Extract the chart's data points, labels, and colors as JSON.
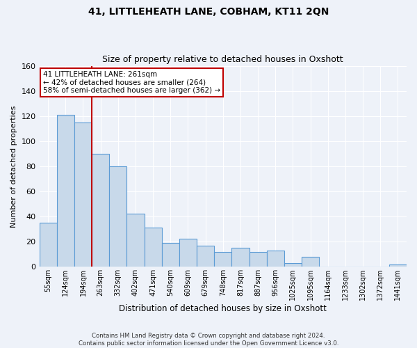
{
  "title": "41, LITTLEHEATH LANE, COBHAM, KT11 2QN",
  "subtitle": "Size of property relative to detached houses in Oxshott",
  "xlabel": "Distribution of detached houses by size in Oxshott",
  "ylabel": "Number of detached properties",
  "categories": [
    "55sqm",
    "124sqm",
    "194sqm",
    "263sqm",
    "332sqm",
    "402sqm",
    "471sqm",
    "540sqm",
    "609sqm",
    "679sqm",
    "748sqm",
    "817sqm",
    "887sqm",
    "956sqm",
    "1025sqm",
    "1095sqm",
    "1164sqm",
    "1233sqm",
    "1302sqm",
    "1372sqm",
    "1441sqm"
  ],
  "values": [
    35,
    121,
    115,
    90,
    80,
    42,
    31,
    19,
    22,
    17,
    12,
    15,
    12,
    13,
    3,
    8,
    0,
    0,
    0,
    0,
    2
  ],
  "bar_color": "#c8d9ea",
  "bar_edge_color": "#5b9bd5",
  "vline_x": 2.5,
  "vline_color": "#c00000",
  "annotation_text": "41 LITTLEHEATH LANE: 261sqm\n← 42% of detached houses are smaller (264)\n58% of semi-detached houses are larger (362) →",
  "annotation_box_color": "#ffffff",
  "annotation_box_edge": "#c00000",
  "ylim": [
    0,
    160
  ],
  "yticks": [
    0,
    20,
    40,
    60,
    80,
    100,
    120,
    140,
    160
  ],
  "footer": "Contains HM Land Registry data © Crown copyright and database right 2024.\nContains public sector information licensed under the Open Government Licence v3.0.",
  "background_color": "#eef2f9",
  "grid_color": "#ffffff"
}
